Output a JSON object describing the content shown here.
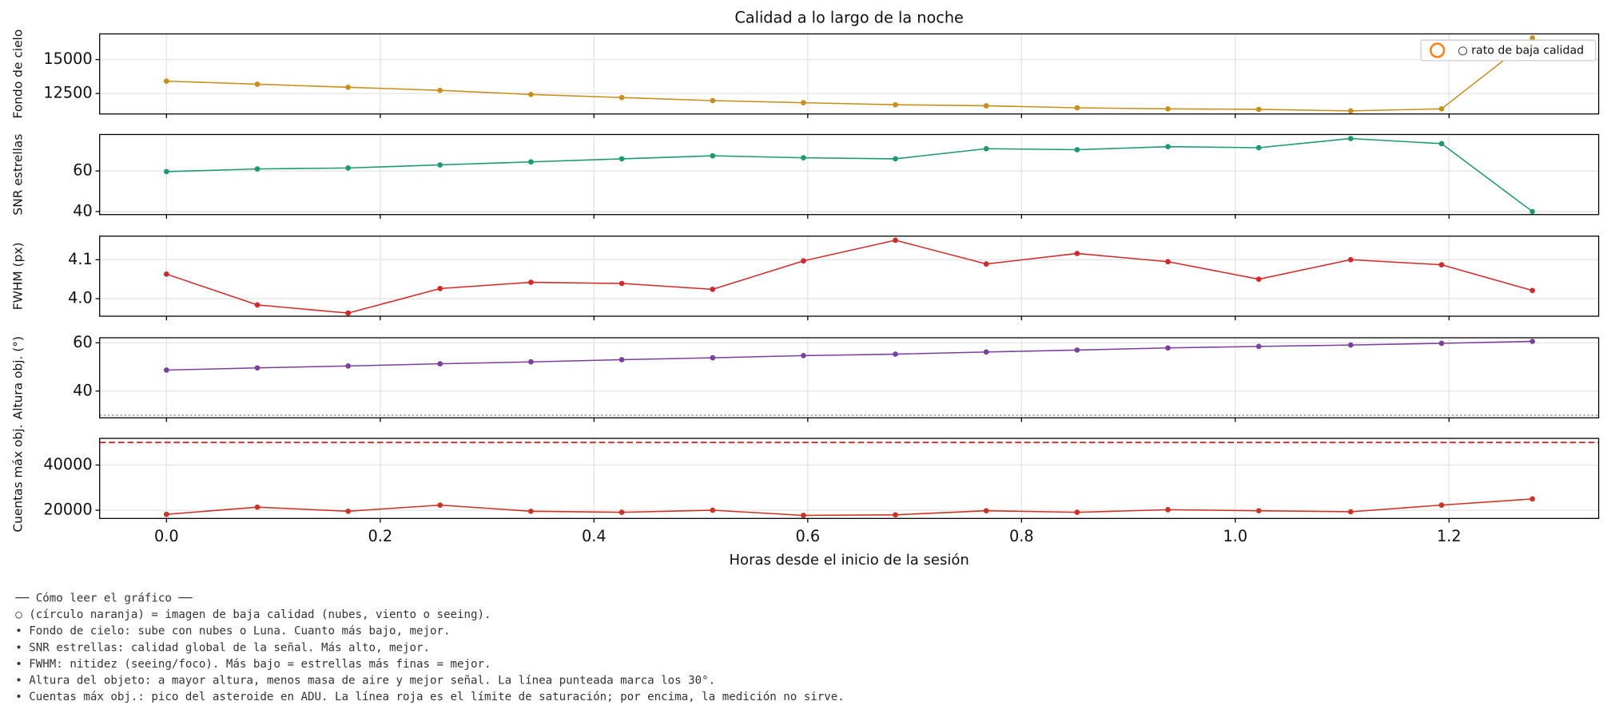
{
  "chart_data": [
    {
      "type": "line",
      "title": "Calidad a lo largo de la noche",
      "ylabel": "Fondo de cielo",
      "color": "#c8901a",
      "x": [
        0,
        0.085,
        0.17,
        0.256,
        0.341,
        0.426,
        0.511,
        0.596,
        0.682,
        0.767,
        0.852,
        0.937,
        1.022,
        1.108,
        1.193,
        1.278
      ],
      "values": [
        13409,
        13182,
        12955,
        12727,
        12424,
        12197,
        11970,
        11818,
        11667,
        11591,
        11439,
        11364,
        11326,
        11212,
        11364,
        16600
      ],
      "xlim": [
        -0.0625,
        1.34
      ],
      "ylim": [
        10985,
        16894
      ],
      "yticks": [
        12500,
        15000
      ],
      "grid": true,
      "legend": {
        "label": "○ rato de baja calidad",
        "color": "#ff7f0e",
        "loc": "upper right"
      }
    },
    {
      "type": "line",
      "ylabel": "SNR estrellas",
      "color": "#1a9a6e",
      "x": [
        0,
        0.085,
        0.17,
        0.256,
        0.341,
        0.426,
        0.511,
        0.596,
        0.682,
        0.767,
        0.852,
        0.937,
        1.022,
        1.108,
        1.193,
        1.278
      ],
      "values": [
        59.7,
        61,
        61.5,
        63,
        64.5,
        66,
        67.5,
        66.5,
        66,
        71,
        70.5,
        72,
        71.5,
        76,
        73.5,
        40
      ],
      "xlim": [
        -0.0625,
        1.34
      ],
      "ylim": [
        38.5,
        78
      ],
      "yticks": [
        40,
        60
      ],
      "grid": true
    },
    {
      "type": "line",
      "ylabel": "FWHM (px)",
      "color": "#d62728",
      "x": [
        0,
        0.085,
        0.17,
        0.256,
        0.341,
        0.426,
        0.511,
        0.596,
        0.682,
        0.767,
        0.852,
        0.937,
        1.022,
        1.108,
        1.193,
        1.278
      ],
      "values": [
        4.063,
        3.984,
        3.963,
        4.026,
        4.042,
        4.039,
        4.024,
        4.097,
        4.15,
        4.089,
        4.116,
        4.095,
        4.05,
        4.1,
        4.087,
        4.021
      ],
      "xlim": [
        -0.0625,
        1.34
      ],
      "ylim": [
        3.955,
        4.1605
      ],
      "yticks": [
        {
          "value": 4.0,
          "label": "4.0"
        },
        4.1
      ],
      "grid": true
    },
    {
      "type": "line",
      "ylabel": "Altura obj. (°)",
      "color": "#7b3fa0",
      "x": [
        0,
        0.085,
        0.17,
        0.256,
        0.341,
        0.426,
        0.511,
        0.596,
        0.682,
        0.767,
        0.852,
        0.937,
        1.022,
        1.108,
        1.193,
        1.278
      ],
      "values": [
        48.7,
        49.6,
        50.4,
        51.3,
        52.1,
        53,
        53.8,
        54.7,
        55.3,
        56.2,
        57,
        57.9,
        58.5,
        59.1,
        59.8,
        60.6
      ],
      "xlim": [
        -0.0625,
        1.34
      ],
      "ylim": [
        28.9,
        62.1
      ],
      "yticks": [
        40,
        60
      ],
      "grid": true,
      "hline": {
        "value": 30,
        "color": "#888888",
        "style": "dotted"
      }
    },
    {
      "type": "line",
      "ylabel": "Cuentas máx obj.",
      "xlabel": "Horas desde el inicio de la sesión",
      "color": "#cc3322",
      "x": [
        0,
        0.085,
        0.17,
        0.256,
        0.341,
        0.426,
        0.511,
        0.596,
        0.682,
        0.767,
        0.852,
        0.937,
        1.022,
        1.108,
        1.193,
        1.278
      ],
      "values": [
        18182,
        21364,
        19545,
        22273,
        19545,
        19091,
        20000,
        17727,
        17955,
        19773,
        19091,
        20227,
        19773,
        19318,
        22273,
        25000
      ],
      "xlim": [
        -0.0625,
        1.34
      ],
      "ylim": [
        16364,
        51818
      ],
      "yticks": [
        20000,
        40000
      ],
      "grid": true,
      "xticks": [
        {
          "value": 0,
          "label": "0.0"
        },
        0.2,
        0.4,
        0.6,
        0.8,
        {
          "value": 1,
          "label": "1.0"
        },
        1.2
      ],
      "hline": {
        "value": 50000,
        "color": "#d62728",
        "style": "dashed"
      }
    }
  ],
  "notes": {
    "heading": "── Cómo leer el gráfico ──",
    "lines": [
      "○ (círculo naranja) = imagen de baja calidad (nubes, viento o seeing).",
      "• Fondo de cielo: sube con nubes o Luna. Cuanto más bajo, mejor.",
      "• SNR estrellas: calidad global de la señal. Más alto, mejor.",
      "• FWHM: nitidez (seeing/foco). Más bajo = estrellas más finas = mejor.",
      "• Altura del objeto: a mayor altura, menos masa de aire y mejor señal. La línea punteada marca los 30°.",
      "• Cuentas máx obj.: pico del asteroide en ADU. La línea roja es el límite de saturación; por encima, la medición no sirve."
    ]
  }
}
